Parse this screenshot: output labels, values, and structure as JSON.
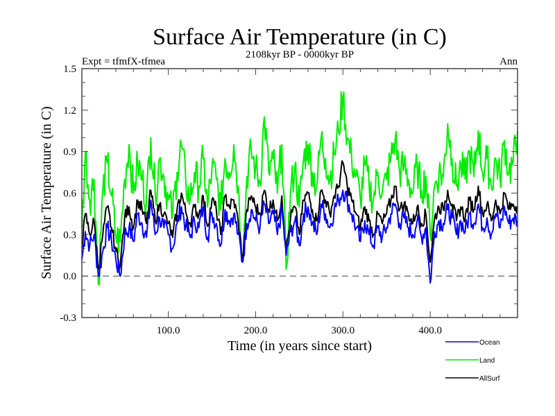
{
  "chart_data": {
    "type": "line",
    "title": "Surface Air Temperature (in C)",
    "subtitle": "2108kyr BP - 0000kyr BP",
    "left_label": "Expt = tfmfX-tfmea",
    "right_label": "Ann",
    "xlabel": "Time (in years since start)",
    "ylabel": "Surface Air Temperature (in C)",
    "xlim": [
      1,
      500
    ],
    "ylim": [
      -0.3,
      1.5
    ],
    "x_major_ticks": [
      100,
      200,
      300,
      400
    ],
    "x_tick_labels": [
      "100.0",
      "200.0",
      "300.0",
      "400.0"
    ],
    "x_minor_step": 20,
    "y_major_ticks": [
      -0.3,
      0.0,
      0.3,
      0.6,
      0.9,
      1.2,
      1.5
    ],
    "y_tick_labels": [
      "-0.3",
      "0.0",
      "0.3",
      "0.6",
      "0.9",
      "1.2",
      "1.5"
    ],
    "y_minor_step": 0.1,
    "reference_line": {
      "y": 0.0,
      "style": "dashed"
    },
    "grid": false,
    "legend_position": "bottom-right",
    "x": [
      1,
      5,
      10,
      15,
      20,
      25,
      30,
      35,
      40,
      45,
      50,
      55,
      60,
      65,
      70,
      75,
      80,
      85,
      90,
      95,
      100,
      105,
      110,
      115,
      120,
      125,
      130,
      135,
      140,
      145,
      150,
      155,
      160,
      165,
      170,
      175,
      180,
      185,
      190,
      195,
      200,
      205,
      210,
      215,
      220,
      225,
      230,
      235,
      240,
      245,
      250,
      255,
      260,
      265,
      270,
      275,
      280,
      285,
      290,
      295,
      300,
      305,
      310,
      315,
      320,
      325,
      330,
      335,
      340,
      345,
      350,
      355,
      360,
      365,
      370,
      375,
      380,
      385,
      390,
      395,
      400,
      405,
      410,
      415,
      420,
      425,
      430,
      435,
      440,
      445,
      450,
      455,
      460,
      465,
      470,
      475,
      480,
      485,
      490,
      495,
      500
    ],
    "series": [
      {
        "name": "Ocean",
        "color": "#0000ff",
        "values": [
          0.12,
          0.32,
          0.22,
          0.3,
          0.0,
          0.18,
          0.35,
          0.25,
          0.12,
          0.0,
          0.3,
          0.35,
          0.25,
          0.45,
          0.38,
          0.28,
          0.55,
          0.3,
          0.42,
          0.35,
          0.3,
          0.2,
          0.38,
          0.5,
          0.36,
          0.28,
          0.4,
          0.35,
          0.5,
          0.28,
          0.45,
          0.38,
          0.22,
          0.48,
          0.4,
          0.45,
          0.3,
          0.1,
          0.38,
          0.48,
          0.4,
          0.35,
          0.52,
          0.38,
          0.45,
          0.3,
          0.48,
          0.15,
          0.32,
          0.4,
          0.22,
          0.45,
          0.5,
          0.38,
          0.3,
          0.52,
          0.45,
          0.35,
          0.48,
          0.55,
          0.62,
          0.55,
          0.45,
          0.35,
          0.25,
          0.4,
          0.3,
          0.22,
          0.35,
          0.28,
          0.35,
          0.45,
          0.52,
          0.38,
          0.42,
          0.35,
          0.3,
          0.4,
          0.28,
          0.35,
          -0.05,
          0.32,
          0.4,
          0.38,
          0.48,
          0.42,
          0.3,
          0.4,
          0.32,
          0.45,
          0.38,
          0.52,
          0.35,
          0.42,
          0.3,
          0.45,
          0.35,
          0.5,
          0.38,
          0.42,
          0.4
        ]
      },
      {
        "name": "Land",
        "color": "#00ee00",
        "values": [
          0.35,
          0.9,
          0.55,
          0.7,
          -0.06,
          0.62,
          0.82,
          0.58,
          0.28,
          0.25,
          0.7,
          0.95,
          0.6,
          0.82,
          0.7,
          0.55,
          1.0,
          0.6,
          0.85,
          0.72,
          0.55,
          0.45,
          0.75,
          0.95,
          0.68,
          0.55,
          0.75,
          0.65,
          0.85,
          0.5,
          0.78,
          0.7,
          0.48,
          0.85,
          0.75,
          0.95,
          0.65,
          0.1,
          0.72,
          0.9,
          0.78,
          0.68,
          1.15,
          0.75,
          0.85,
          0.6,
          0.95,
          0.05,
          0.6,
          0.8,
          0.5,
          0.85,
          0.95,
          0.75,
          0.65,
          1.0,
          0.85,
          0.7,
          0.88,
          1.05,
          1.3,
          1.0,
          0.85,
          0.72,
          0.55,
          0.8,
          0.65,
          0.55,
          0.75,
          0.6,
          0.7,
          0.85,
          1.0,
          0.75,
          0.8,
          0.7,
          0.6,
          0.8,
          0.62,
          0.72,
          0.3,
          0.65,
          0.75,
          0.72,
          1.1,
          0.85,
          0.65,
          0.8,
          0.7,
          0.9,
          0.72,
          1.05,
          0.75,
          0.85,
          0.65,
          0.85,
          0.7,
          0.98,
          0.75,
          0.82,
          1.05
        ]
      },
      {
        "name": "AllSurf",
        "color": "#000000",
        "values": [
          0.2,
          0.45,
          0.3,
          0.4,
          0.05,
          0.3,
          0.5,
          0.35,
          0.18,
          0.08,
          0.42,
          0.5,
          0.35,
          0.55,
          0.48,
          0.38,
          0.62,
          0.4,
          0.52,
          0.45,
          0.38,
          0.28,
          0.48,
          0.6,
          0.46,
          0.38,
          0.5,
          0.44,
          0.58,
          0.36,
          0.55,
          0.48,
          0.3,
          0.58,
          0.5,
          0.55,
          0.4,
          0.12,
          0.48,
          0.58,
          0.5,
          0.45,
          0.62,
          0.48,
          0.55,
          0.4,
          0.58,
          0.18,
          0.42,
          0.5,
          0.3,
          0.55,
          0.6,
          0.48,
          0.4,
          0.62,
          0.55,
          0.45,
          0.58,
          0.65,
          0.82,
          0.65,
          0.55,
          0.45,
          0.35,
          0.5,
          0.4,
          0.3,
          0.45,
          0.38,
          0.45,
          0.55,
          0.65,
          0.48,
          0.52,
          0.45,
          0.38,
          0.5,
          0.38,
          0.45,
          0.1,
          0.42,
          0.5,
          0.48,
          0.62,
          0.52,
          0.4,
          0.5,
          0.42,
          0.55,
          0.48,
          0.65,
          0.45,
          0.52,
          0.4,
          0.55,
          0.45,
          0.6,
          0.48,
          0.52,
          0.5
        ]
      }
    ]
  }
}
